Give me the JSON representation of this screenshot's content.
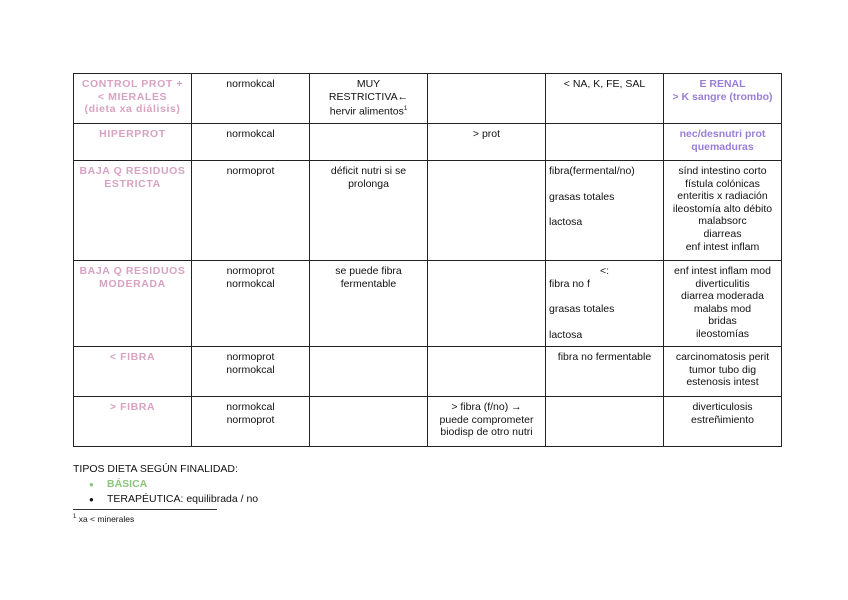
{
  "colors": {
    "pink": "#d8a2c2",
    "purple": "#9a7ed6",
    "green": "#8cc47c",
    "text": "#111111"
  },
  "table": {
    "rows": [
      {
        "label": [
          "CONTROL PROT +",
          "< MIERALES",
          "(dieta xa diálisis)"
        ],
        "label_color": "pink",
        "cells": [
          {
            "lines": [
              "normokcal"
            ]
          },
          {
            "lines": [
              "MUY",
              "RESTRICTIVA←",
              "hervir alimentos"
            ],
            "footnote_ref": "1"
          },
          {
            "lines": []
          },
          {
            "lines": [
              "< NA, K, FE, SAL"
            ]
          },
          {
            "lines": [
              "E RENAL",
              "> K sangre (trombo)"
            ],
            "color": "purple",
            "bold": true
          }
        ]
      },
      {
        "label": [
          "HIPERPROT"
        ],
        "label_color": "pink",
        "cells": [
          {
            "lines": [
              "normokcal"
            ]
          },
          {
            "lines": []
          },
          {
            "lines": [
              "> prot"
            ]
          },
          {
            "lines": []
          },
          {
            "lines": [
              "nec/desnutri prot",
              "quemaduras"
            ],
            "color": "purple",
            "bold": true
          }
        ]
      },
      {
        "label": [
          "BAJA Q RESIDUOS",
          "ESTRICTA"
        ],
        "label_color": "pink",
        "cells": [
          {
            "lines": [
              "normoprot"
            ]
          },
          {
            "lines": [
              "déficit nutri si se",
              "prolonga"
            ]
          },
          {
            "lines": []
          },
          {
            "lines": [
              "fibra(fermental/no)",
              "",
              "grasas totales",
              "",
              "lactosa"
            ],
            "align": "left"
          },
          {
            "lines": [
              "sínd  intestino corto",
              "fístula colónicas",
              "enteritis x radiación",
              "ileostomía alto débito",
              "malabsorc",
              "diarreas",
              "enf intest inflam"
            ]
          }
        ]
      },
      {
        "label": [
          "BAJA Q RESIDUOS",
          "MODERADA"
        ],
        "label_color": "pink",
        "cells": [
          {
            "lines": [
              "normoprot",
              "normokcal"
            ]
          },
          {
            "lines": [
              "se puede fibra",
              "fermentable"
            ]
          },
          {
            "lines": []
          },
          {
            "heading": "<:",
            "lines": [
              "fibra no f",
              "",
              "grasas totales",
              "",
              "lactosa"
            ],
            "align": "left"
          },
          {
            "lines": [
              "enf intest inflam mod",
              "diverticulitis",
              "diarrea moderada",
              "malabs mod",
              "bridas",
              "ileostomías"
            ]
          }
        ]
      },
      {
        "label": [
          "< FIBRA"
        ],
        "label_color": "pink",
        "cells": [
          {
            "lines": [
              "normoprot",
              "normokcal"
            ]
          },
          {
            "lines": []
          },
          {
            "lines": []
          },
          {
            "lines": [
              "fibra no fermentable"
            ]
          },
          {
            "lines": [
              "carcinomatosis perit",
              "tumor tubo dig",
              "estenosis intest"
            ]
          }
        ]
      },
      {
        "label": [
          "> FIBRA"
        ],
        "label_color": "pink",
        "cells": [
          {
            "lines": [
              "normokcal",
              "normoprot"
            ]
          },
          {
            "lines": []
          },
          {
            "lines": [
              "> fibra (f/no) →",
              "puede comprometer",
              "biodisp de otro nutri"
            ]
          },
          {
            "lines": []
          },
          {
            "lines": [
              "diverticulosis",
              "estreñimiento"
            ]
          }
        ]
      }
    ]
  },
  "notes": {
    "heading": "TIPOS DIETA SEGÚN  FINALIDAD:",
    "items": [
      {
        "text": "BÁSICA",
        "color": "green",
        "bold": true
      },
      {
        "text": "TERAPÉUTICA: equilibrada / no"
      }
    ],
    "bullet_icon": "●"
  },
  "footnote": {
    "mark": "1",
    "text": "xa < minerales"
  }
}
